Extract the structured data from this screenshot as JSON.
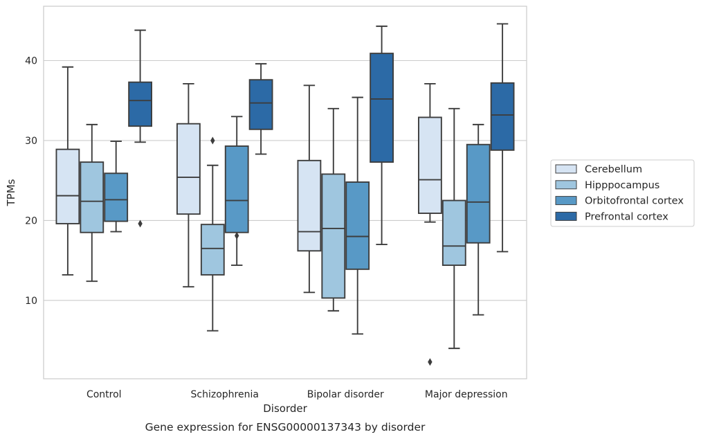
{
  "chart_data": {
    "type": "box",
    "xlabel": "Disorder",
    "ylabel": "TPMs",
    "caption": "Gene expression for ENSG00000137343 by disorder",
    "ylim": [
      0.2,
      46.8
    ],
    "yticks": [
      10,
      20,
      30,
      40
    ],
    "grid": "horizontal",
    "legend_position": "right",
    "categories": [
      "Control",
      "Schizophrenia",
      "Bipolar disorder",
      "Major depression"
    ],
    "series": [
      {
        "name": "Cerebellum",
        "color": "#d6e4f3",
        "boxes": [
          {
            "whisker_low": 13.2,
            "q1": 19.6,
            "median": 23.1,
            "q3": 28.9,
            "whisker_high": 39.2,
            "outliers": []
          },
          {
            "whisker_low": 11.7,
            "q1": 20.8,
            "median": 25.4,
            "q3": 32.1,
            "whisker_high": 37.1,
            "outliers": []
          },
          {
            "whisker_low": 11.0,
            "q1": 16.2,
            "median": 18.6,
            "q3": 27.5,
            "whisker_high": 36.9,
            "outliers": []
          },
          {
            "whisker_low": 19.8,
            "q1": 20.9,
            "median": 25.1,
            "q3": 32.9,
            "whisker_high": 37.1,
            "outliers": [
              2.3
            ]
          }
        ]
      },
      {
        "name": "Hipppocampus",
        "color": "#9fc6df",
        "boxes": [
          {
            "whisker_low": 12.4,
            "q1": 18.5,
            "median": 22.4,
            "q3": 27.3,
            "whisker_high": 32.0,
            "outliers": []
          },
          {
            "whisker_low": 6.2,
            "q1": 13.2,
            "median": 16.5,
            "q3": 19.5,
            "whisker_high": 26.9,
            "outliers": [
              30.0
            ]
          },
          {
            "whisker_low": 8.7,
            "q1": 10.3,
            "median": 19.0,
            "q3": 25.8,
            "whisker_high": 34.0,
            "outliers": []
          },
          {
            "whisker_low": 4.0,
            "q1": 14.4,
            "median": 16.8,
            "q3": 22.5,
            "whisker_high": 34.0,
            "outliers": []
          }
        ]
      },
      {
        "name": "Orbitofrontal cortex",
        "color": "#5899c6",
        "boxes": [
          {
            "whisker_low": 18.6,
            "q1": 19.9,
            "median": 22.6,
            "q3": 25.9,
            "whisker_high": 29.9,
            "outliers": []
          },
          {
            "whisker_low": 14.4,
            "q1": 18.5,
            "median": 22.5,
            "q3": 29.3,
            "whisker_high": 33.0,
            "outliers": [
              18.1
            ]
          },
          {
            "whisker_low": 5.8,
            "q1": 13.9,
            "median": 18.0,
            "q3": 24.8,
            "whisker_high": 35.4,
            "outliers": []
          },
          {
            "whisker_low": 8.2,
            "q1": 17.2,
            "median": 22.3,
            "q3": 29.5,
            "whisker_high": 32.0,
            "outliers": []
          }
        ]
      },
      {
        "name": "Prefrontal cortex",
        "color": "#2c6aa6",
        "boxes": [
          {
            "whisker_low": 29.8,
            "q1": 31.8,
            "median": 35.0,
            "q3": 37.3,
            "whisker_high": 43.8,
            "outliers": [
              19.6
            ]
          },
          {
            "whisker_low": 28.3,
            "q1": 31.4,
            "median": 34.7,
            "q3": 37.6,
            "whisker_high": 39.6,
            "outliers": []
          },
          {
            "whisker_low": 17.0,
            "q1": 27.3,
            "median": 35.2,
            "q3": 40.9,
            "whisker_high": 44.3,
            "outliers": []
          },
          {
            "whisker_low": 16.1,
            "q1": 28.8,
            "median": 33.2,
            "q3": 37.2,
            "whisker_high": 44.6,
            "outliers": []
          }
        ]
      }
    ]
  }
}
